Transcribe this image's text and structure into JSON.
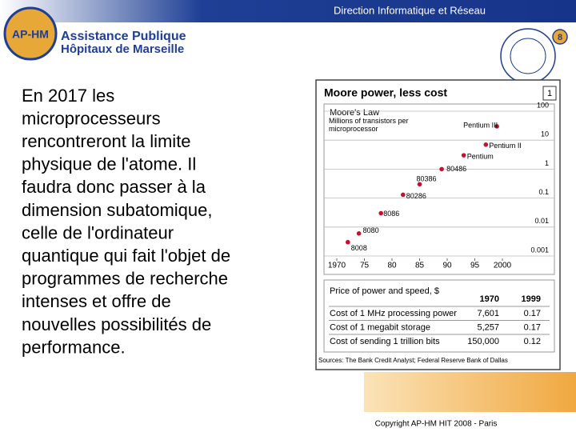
{
  "header": {
    "title": "Direction Informatique et Réseau"
  },
  "logo": {
    "badge": "AP-HM",
    "line1": "Assistance Publique",
    "line2": "Hôpitaux de Marseille"
  },
  "slide_number": "8",
  "body": {
    "lines": [
      "En 2017 les",
      "microprocesseurs",
      "rencontreront la limite",
      "physique de l'atome. Il",
      "faudra donc passer à la",
      "dimension subatomique,",
      "celle de l'ordinateur",
      "quantique qui fait l'objet de",
      "programmes de recherche",
      "intenses et offre de",
      "nouvelles possibilités de",
      "performance."
    ]
  },
  "figure": {
    "title": "Moore power, less cost",
    "number": "1",
    "table": {
      "title": "Price of power and speed, $",
      "columns": [
        "1970",
        "1999"
      ],
      "rows": [
        [
          "Cost of 1 MHz processing power",
          "7,601",
          "0.17"
        ],
        [
          "Cost of 1 megabit storage",
          "5,257",
          "0.17"
        ],
        [
          "Cost of sending 1 trillion bits",
          "150,000",
          "0.12"
        ]
      ]
    },
    "source": "Sources: The Bank Credit Analyst; Federal Reserve Bank of Dallas"
  },
  "chart_data": {
    "type": "scatter",
    "title": "Moore's Law",
    "subtitle": "Millions of transistors per microprocessor",
    "x": [
      1972,
      1974,
      1978,
      1982,
      1985,
      1989,
      1993,
      1997,
      1999
    ],
    "values": [
      0.003,
      0.006,
      0.03,
      0.13,
      0.3,
      1,
      3,
      7,
      30
    ],
    "point_labels": [
      "8008",
      "8080",
      "8086",
      "80286",
      "80386",
      "80486",
      "Pentium",
      "Pentium II",
      "Pentium III"
    ],
    "color": "#c8102e",
    "log_scale_y": true,
    "grid": true,
    "xlim": [
      1970,
      2000
    ],
    "ylim": [
      0.001,
      100
    ],
    "xticks": [
      1970,
      {
        "value": 1975,
        "label": "75"
      },
      {
        "value": 1980,
        "label": "80"
      },
      {
        "value": 1985,
        "label": "85"
      },
      {
        "value": 1990,
        "label": "90"
      },
      {
        "value": 1995,
        "label": "95"
      },
      2000
    ],
    "yticks": [
      0.001,
      0.01,
      0.1,
      1,
      10,
      100
    ]
  },
  "footer": "Copyright AP-HM HIT 2008 - Paris"
}
